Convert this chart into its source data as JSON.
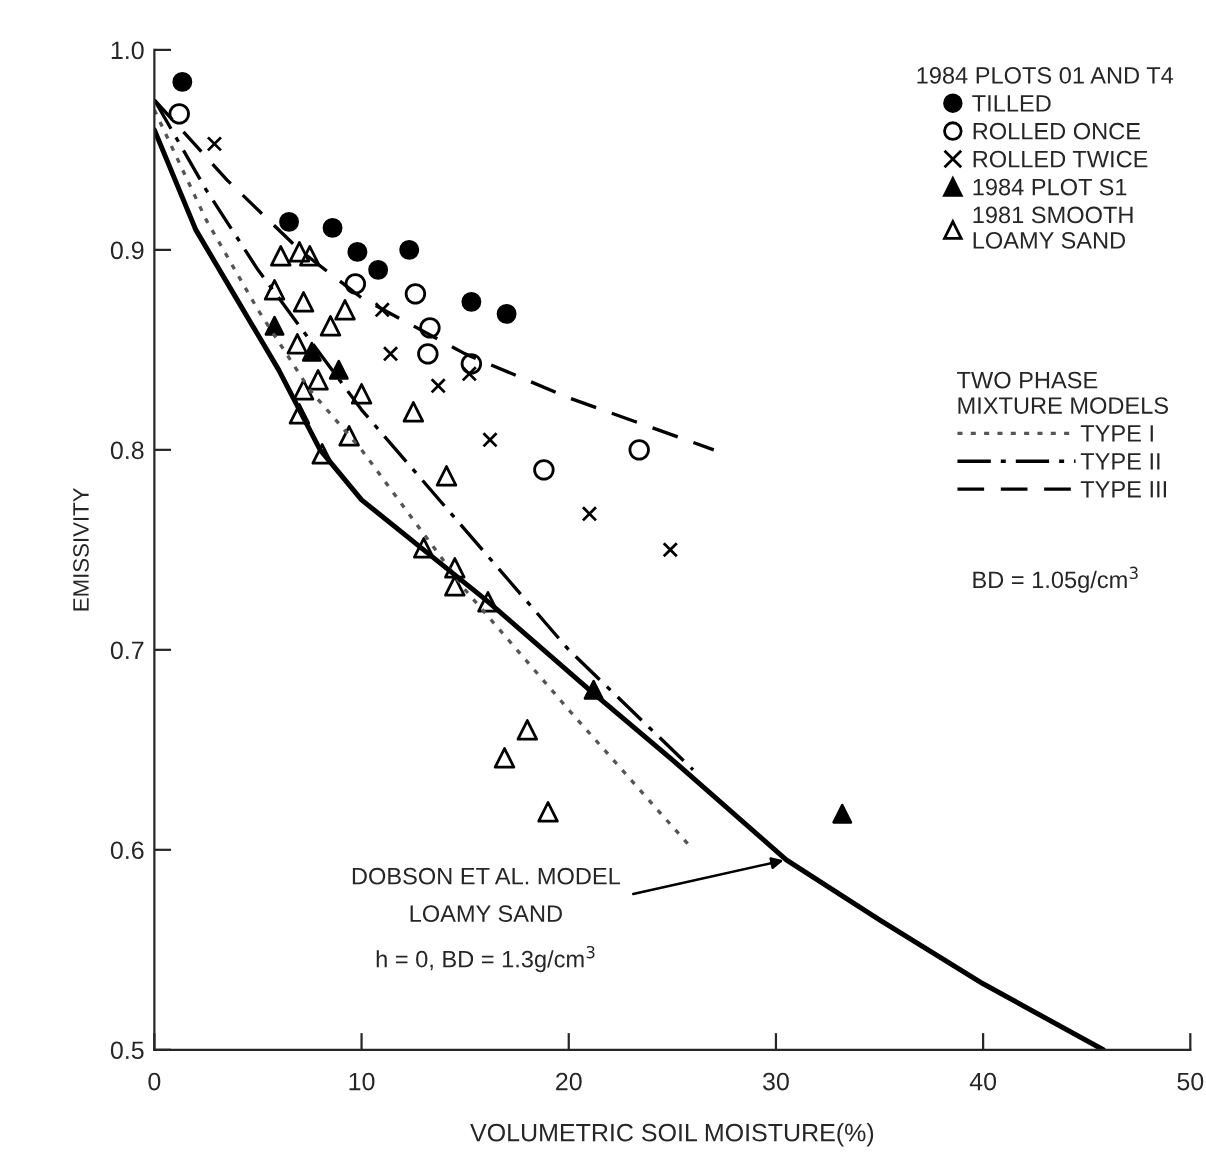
{
  "chart_data": {
    "type": "scatter",
    "xlabel": "VOLUMETRIC SOIL MOISTURE(%)",
    "ylabel": "EMISSIVITY",
    "legend_title": "1984 PLOTS 01 AND T4",
    "xlim": [
      0,
      50
    ],
    "ylim": [
      0.5,
      1.0
    ],
    "xticks": [
      0,
      10,
      20,
      30,
      40,
      50
    ],
    "yticks": [
      0.5,
      0.6,
      0.7,
      0.8,
      0.9,
      {
        "value": 1.0,
        "label": "1.0"
      }
    ],
    "grid": false,
    "legend": "top right",
    "series": [
      {
        "name": "TILLED",
        "type": "scatter",
        "marker": "circle",
        "color": "#000000",
        "x": [
          1.35,
          6.5,
          8.6,
          9.8,
          10.8,
          12.3,
          15.3,
          17.0
        ],
        "values": [
          0.984,
          0.914,
          0.911,
          0.899,
          0.89,
          0.9,
          0.874,
          0.868
        ]
      },
      {
        "name": "ROLLED ONCE",
        "type": "scatter",
        "marker": "circle-open",
        "color": "#000000",
        "x": [
          1.2,
          9.7,
          12.6,
          13.3,
          13.2,
          15.3,
          18.8,
          23.4
        ],
        "values": [
          0.968,
          0.883,
          0.878,
          0.861,
          0.848,
          0.843,
          0.79,
          0.8
        ]
      },
      {
        "name": "ROLLED TWICE",
        "type": "scatter",
        "marker": "cross",
        "color": "#000000",
        "x": [
          2.9,
          11.0,
          11.4,
          13.7,
          15.2,
          16.2,
          21.0,
          24.9
        ],
        "values": [
          0.953,
          0.87,
          0.848,
          0.832,
          0.838,
          0.805,
          0.768,
          0.75
        ]
      },
      {
        "name": "1984 PLOT S1",
        "type": "scatter",
        "marker": "triangle",
        "color": "#000000",
        "x": [
          5.8,
          7.6,
          8.9,
          21.2,
          33.2
        ],
        "values": [
          0.862,
          0.849,
          0.84,
          0.68,
          0.618
        ]
      },
      {
        "name": "1981 SMOOTH\nLOAMY SAND",
        "type": "scatter",
        "marker": "triangle-open",
        "color": "#000000",
        "x": [
          6.1,
          7.0,
          7.5,
          5.8,
          7.2,
          9.2,
          6.9,
          8.5,
          7.2,
          7.9,
          10.0,
          12.5,
          7.0,
          9.4,
          8.1,
          14.1,
          13.0,
          14.5,
          14.5,
          16.1,
          18.0,
          16.9,
          19.0
        ],
        "values": [
          0.897,
          0.899,
          0.897,
          0.88,
          0.874,
          0.87,
          0.853,
          0.862,
          0.83,
          0.835,
          0.828,
          0.819,
          0.818,
          0.807,
          0.798,
          0.787,
          0.751,
          0.741,
          0.732,
          0.724,
          0.66,
          0.646,
          0.619
        ]
      },
      {
        "name": "TYPE I",
        "type": "line",
        "line_style": "dotted",
        "color": "#555555",
        "x": [
          0,
          2.5,
          5,
          7.5,
          10,
          15,
          20,
          26
        ],
        "values": [
          0.97,
          0.915,
          0.87,
          0.83,
          0.8,
          0.73,
          0.67,
          0.6
        ]
      },
      {
        "name": "TYPE II",
        "type": "line",
        "line_style": "dashdot",
        "color": "#000000",
        "x": [
          0,
          2.5,
          5,
          7.5,
          10,
          15,
          20,
          26
        ],
        "values": [
          0.975,
          0.93,
          0.89,
          0.855,
          0.82,
          0.76,
          0.7,
          0.64
        ]
      },
      {
        "name": "TYPE III",
        "type": "line",
        "line_style": "dashed",
        "color": "#000000",
        "x": [
          0,
          3.5,
          7,
          10,
          15,
          20,
          27
        ],
        "values": [
          0.975,
          0.935,
          0.9,
          0.876,
          0.848,
          0.826,
          0.8
        ]
      },
      {
        "type": "line",
        "line_style": "solid",
        "color": "#000000",
        "x": [
          0,
          2,
          4,
          6,
          8,
          10,
          13,
          16,
          21,
          25,
          30.5,
          35,
          40,
          45.8
        ],
        "values": [
          0.96,
          0.91,
          0.875,
          0.84,
          0.8,
          0.775,
          0.75,
          0.725,
          0.68,
          0.645,
          0.595,
          0.565,
          0.533,
          0.5
        ]
      }
    ],
    "annotations": [
      "TWO PHASE\nMIXTURE MODELS",
      "BD = 1.05g/cm$^{3}$",
      {
        "text": "DOBSON ET AL. MODEL\nLOAMY SAND\nh = 0, BD = 1.3g/cm$^{3}$",
        "x": 30.5,
        "y": 0.595
      }
    ]
  }
}
